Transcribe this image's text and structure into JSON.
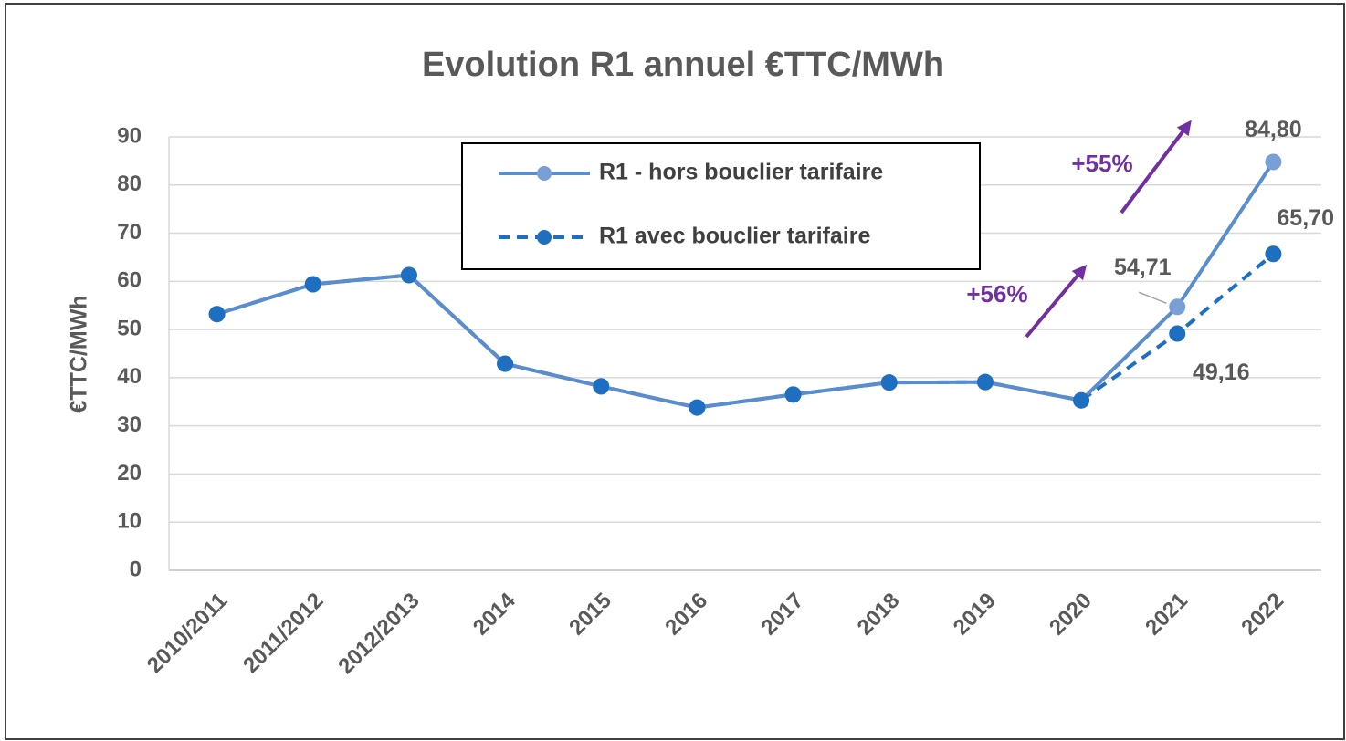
{
  "chart_data": {
    "type": "line",
    "title": "Evolution R1 annuel €TTC/MWh",
    "y_label": "€TTC/MWh",
    "categories": [
      "2010/2011",
      "2011/2012",
      "2012/2013",
      "2014",
      "2015",
      "2016",
      "2017",
      "2018",
      "2019",
      "2020",
      "2021",
      "2022"
    ],
    "series": [
      {
        "name": "R1 - hors bouclier tarifaire",
        "color": "#5b8ccc",
        "marker_color": "#7a9fd6",
        "line_style": "solid",
        "values": [
          53.2,
          59.4,
          61.3,
          42.9,
          38.2,
          33.8,
          36.5,
          39.0,
          39.1,
          35.3,
          54.71,
          84.8
        ],
        "value_labels": [
          null,
          null,
          null,
          null,
          null,
          null,
          null,
          null,
          null,
          null,
          "54,71",
          "84,80"
        ]
      },
      {
        "name": "R1 avec bouclier tarifaire",
        "color": "#1f6fc0",
        "marker_color": "#1f6fc0",
        "line_style": "dashed",
        "values": [
          53.2,
          59.4,
          61.3,
          42.9,
          38.2,
          33.8,
          36.5,
          39.0,
          39.1,
          35.3,
          49.16,
          65.7
        ],
        "value_labels": [
          null,
          null,
          null,
          null,
          null,
          null,
          null,
          null,
          null,
          null,
          "49,16",
          "65,70"
        ]
      }
    ],
    "annotations": [
      "+55%",
      "+56%"
    ],
    "ylim": [
      0,
      90
    ],
    "yticks": [
      0,
      10,
      20,
      30,
      40,
      50,
      60,
      70,
      80,
      90
    ],
    "grid": true,
    "legend": "top"
  }
}
